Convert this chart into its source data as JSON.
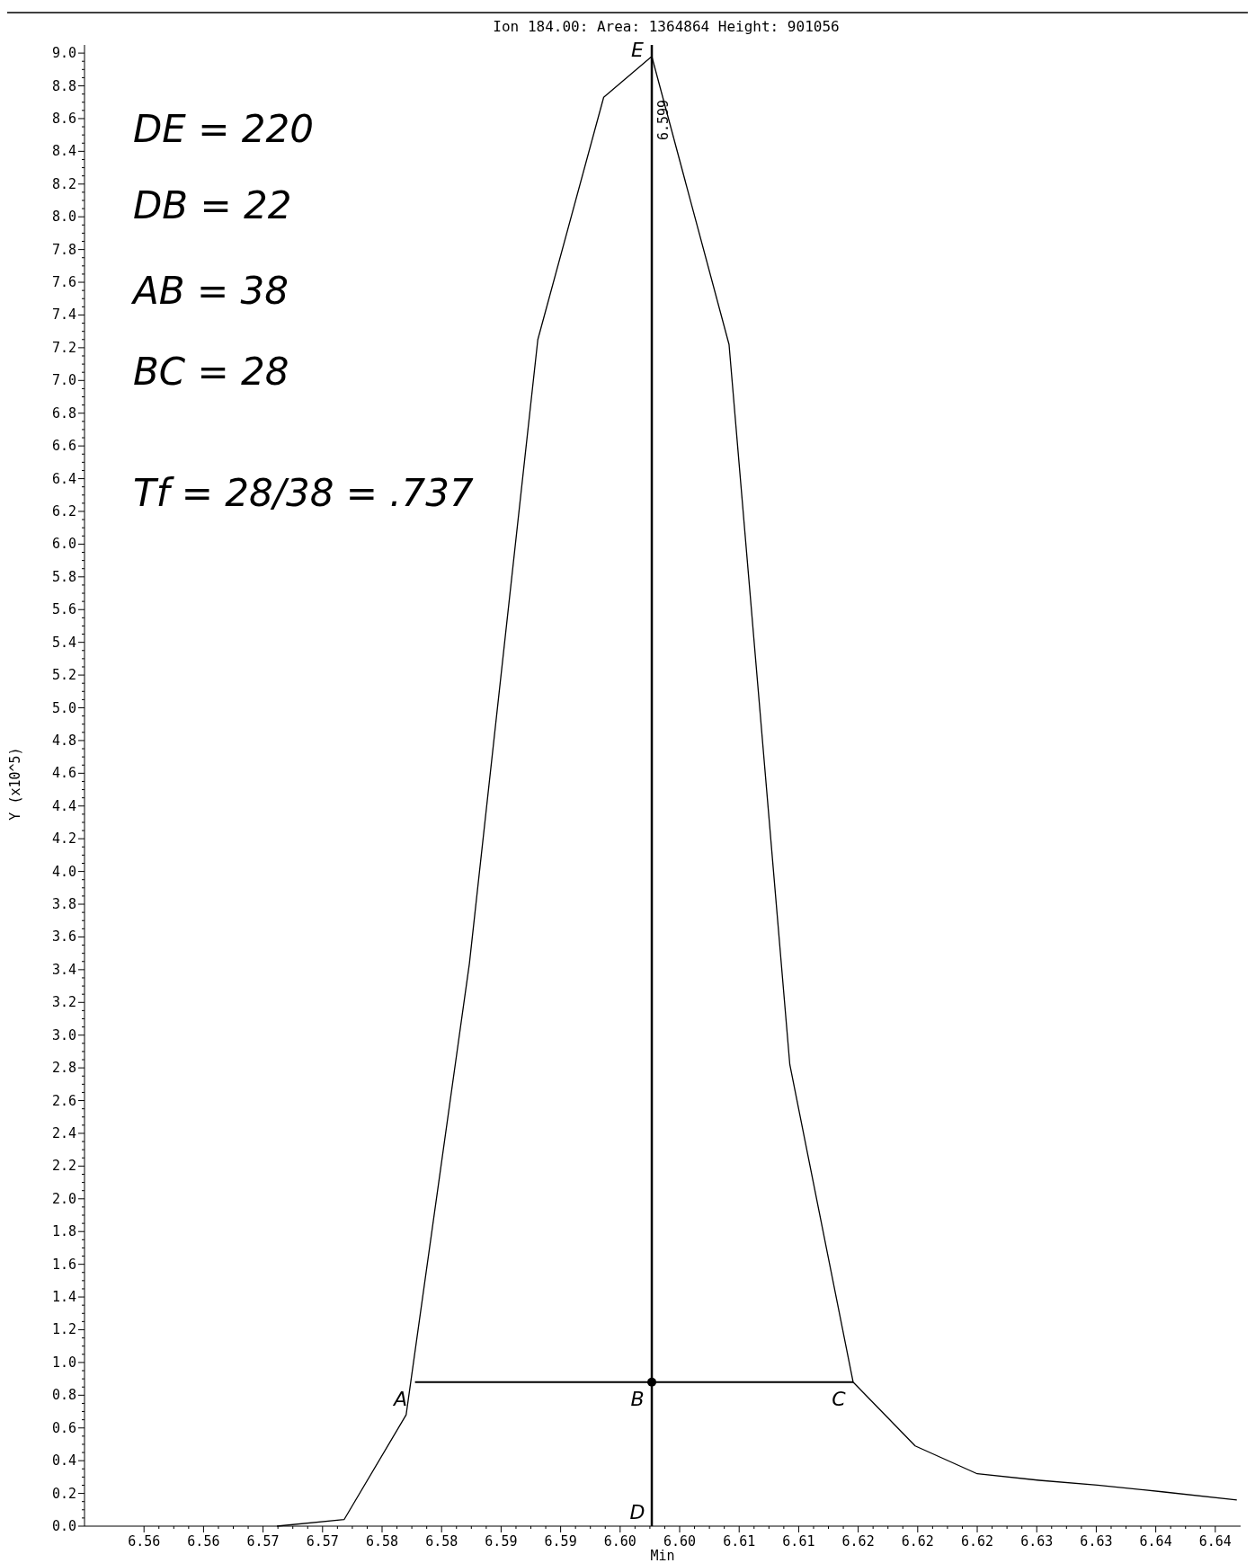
{
  "chart_data": {
    "type": "line",
    "title": "Ion 184.00: Area: 1364864   Height: 901056",
    "xlabel": "Min",
    "ylabel": "Y (x10^5)",
    "xlim": [
      6.5542,
      6.6455
    ],
    "xticks": [
      {
        "value": 6.5589,
        "label": "6.56"
      },
      {
        "value": 6.5636,
        "label": "6.56"
      },
      {
        "value": 6.5683,
        "label": "6.57"
      },
      {
        "value": 6.573,
        "label": "6.57"
      },
      {
        "value": 6.5777,
        "label": "6.58"
      },
      {
        "value": 6.5824,
        "label": "6.58"
      },
      {
        "value": 6.5871,
        "label": "6.59"
      },
      {
        "value": 6.5918,
        "label": "6.59"
      },
      {
        "value": 6.5965,
        "label": "6.60"
      },
      {
        "value": 6.6012,
        "label": "6.60"
      },
      {
        "value": 6.6059,
        "label": "6.61"
      },
      {
        "value": 6.6106,
        "label": "6.61"
      },
      {
        "value": 6.6153,
        "label": "6.62"
      },
      {
        "value": 6.62,
        "label": "6.62"
      },
      {
        "value": 6.6247,
        "label": "6.62"
      },
      {
        "value": 6.6294,
        "label": "6.63"
      },
      {
        "value": 6.6341,
        "label": "6.63"
      },
      {
        "value": 6.6388,
        "label": "6.64"
      },
      {
        "value": 6.6435,
        "label": "6.64"
      }
    ],
    "ylim": [
      0,
      9.05
    ],
    "yticks": [
      {
        "value": 0,
        "label": "0.0"
      },
      {
        "value": 0.2,
        "label": "0.2"
      },
      {
        "value": 0.4,
        "label": "0.4"
      },
      {
        "value": 0.6,
        "label": "0.6"
      },
      {
        "value": 0.8,
        "label": "0.8"
      },
      {
        "value": 1,
        "label": "1.0"
      },
      {
        "value": 1.2,
        "label": "1.2"
      },
      {
        "value": 1.4,
        "label": "1.4"
      },
      {
        "value": 1.6,
        "label": "1.6"
      },
      {
        "value": 1.8,
        "label": "1.8"
      },
      {
        "value": 2,
        "label": "2.0"
      },
      {
        "value": 2.2,
        "label": "2.2"
      },
      {
        "value": 2.4,
        "label": "2.4"
      },
      {
        "value": 2.6,
        "label": "2.6"
      },
      {
        "value": 2.8,
        "label": "2.8"
      },
      {
        "value": 3,
        "label": "3.0"
      },
      {
        "value": 3.2,
        "label": "3.2"
      },
      {
        "value": 3.4,
        "label": "3.4"
      },
      {
        "value": 3.6,
        "label": "3.6"
      },
      {
        "value": 3.8,
        "label": "3.8"
      },
      {
        "value": 4,
        "label": "4.0"
      },
      {
        "value": 4.2,
        "label": "4.2"
      },
      {
        "value": 4.4,
        "label": "4.4"
      },
      {
        "value": 4.6,
        "label": "4.6"
      },
      {
        "value": 4.8,
        "label": "4.8"
      },
      {
        "value": 5,
        "label": "5.0"
      },
      {
        "value": 5.2,
        "label": "5.2"
      },
      {
        "value": 5.4,
        "label": "5.4"
      },
      {
        "value": 5.6,
        "label": "5.6"
      },
      {
        "value": 5.8,
        "label": "5.8"
      },
      {
        "value": 6,
        "label": "6.0"
      },
      {
        "value": 6.2,
        "label": "6.2"
      },
      {
        "value": 6.4,
        "label": "6.4"
      },
      {
        "value": 6.6,
        "label": "6.6"
      },
      {
        "value": 6.8,
        "label": "6.8"
      },
      {
        "value": 7,
        "label": "7.0"
      },
      {
        "value": 7.2,
        "label": "7.2"
      },
      {
        "value": 7.4,
        "label": "7.4"
      },
      {
        "value": 7.6,
        "label": "7.6"
      },
      {
        "value": 7.8,
        "label": "7.8"
      },
      {
        "value": 8,
        "label": "8.0"
      },
      {
        "value": 8.2,
        "label": "8.2"
      },
      {
        "value": 8.4,
        "label": "8.4"
      },
      {
        "value": 8.6,
        "label": "8.6"
      },
      {
        "value": 8.8,
        "label": "8.8"
      },
      {
        "value": 9,
        "label": "9.0"
      }
    ],
    "grid": false,
    "marker": "none",
    "line_style": "solid",
    "series": [
      {
        "color": "#000000",
        "x": [
          6.5694,
          6.5747,
          6.5796,
          6.5846,
          6.59,
          6.5952,
          6.599,
          6.6051,
          6.6099,
          6.6149,
          6.6198,
          6.6247,
          6.6296,
          6.6342,
          6.6393,
          6.6452
        ],
        "values": [
          0,
          0.04,
          0.68,
          3.44,
          7.25,
          8.73,
          8.98,
          7.22,
          2.82,
          0.88,
          0.49,
          0.32,
          0.28,
          0.25,
          0.21,
          0.16
        ]
      },
      {
        "color": "#000000",
        "x": [
          6.5803,
          6.6149
        ],
        "values": [
          0.88,
          0.88
        ]
      },
      {
        "type": "scatter",
        "marker": "circle",
        "color": "#000000",
        "x": [
          6.599
        ],
        "values": [
          0.88
        ]
      }
    ],
    "ref_lines": [
      {
        "axis": "x",
        "value": 6.599,
        "label": "6.599",
        "color": "#000000"
      }
    ],
    "annotations": [
      "DE = 220",
      "DB = 22",
      "AB = 38",
      "BC = 28",
      "Tf = 28/38 = .737",
      {
        "text": "A",
        "x": 6.5803,
        "y": 0.88
      },
      {
        "text": "B",
        "x": 6.599,
        "y": 0.88
      },
      {
        "text": "C",
        "x": 6.6149,
        "y": 0.88
      },
      {
        "text": "D",
        "x": 6.599,
        "y": 0
      },
      {
        "text": "E",
        "x": 6.599,
        "y": 8.98
      }
    ]
  }
}
